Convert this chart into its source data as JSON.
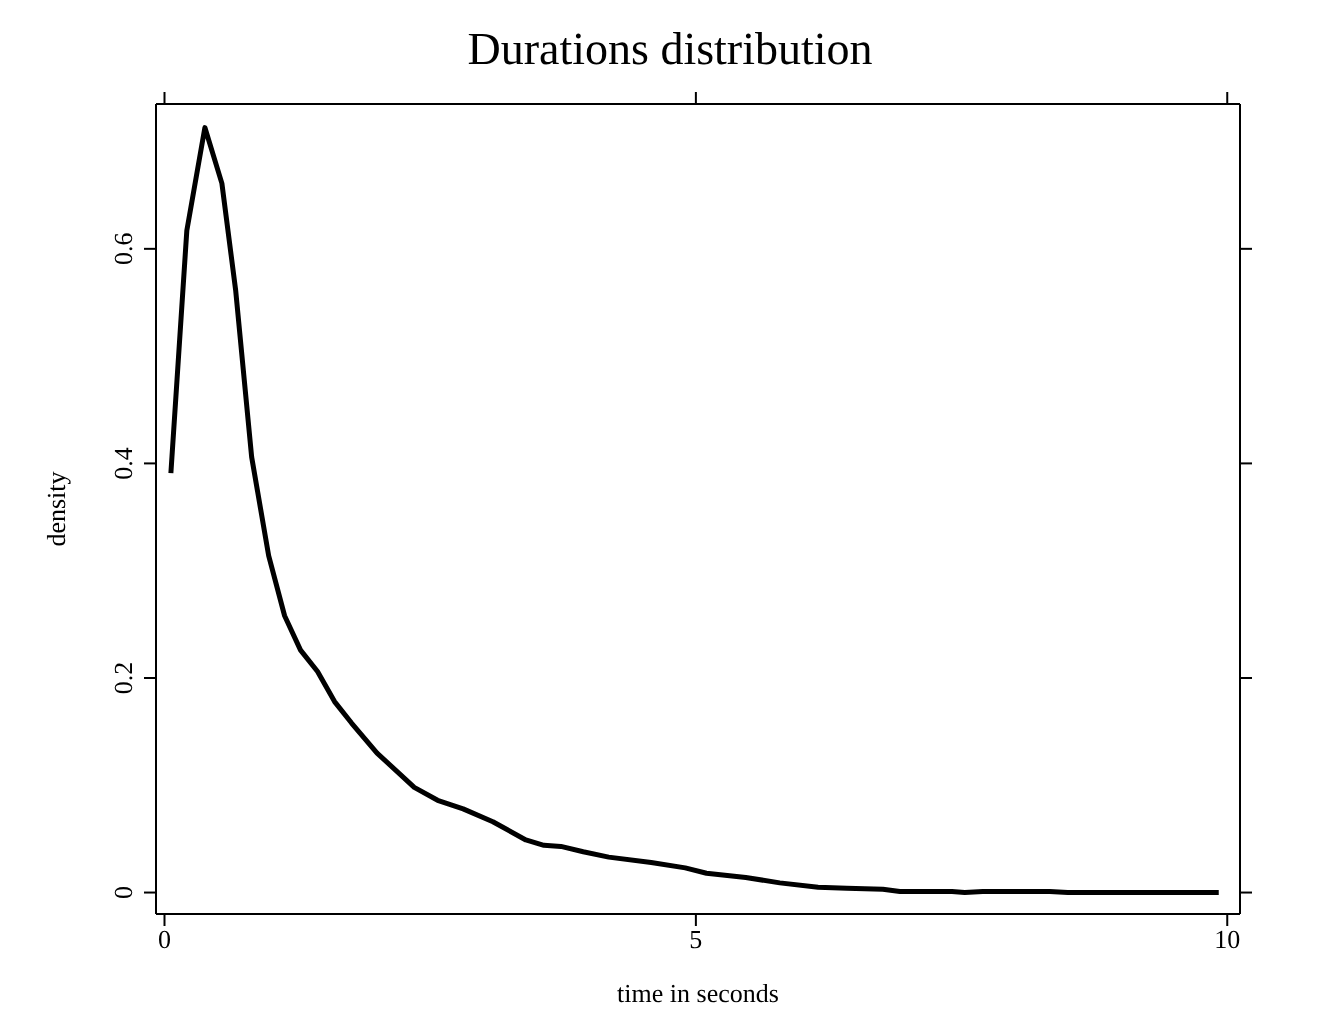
{
  "chart_data": {
    "type": "line",
    "title": "Durations distribution",
    "xlabel": "time in seconds",
    "ylabel": "density",
    "xlim": [
      -0.08,
      10.12
    ],
    "ylim": [
      -0.02,
      0.735
    ],
    "xticks": [
      0,
      5,
      10
    ],
    "yticks": [
      0,
      0.2,
      0.4,
      0.6
    ],
    "marker": "none",
    "line_style": "solid",
    "series": [
      {
        "color": "#000000",
        "x": [
          0.06,
          0.21,
          0.38,
          0.54,
          0.67,
          0.82,
          0.98,
          1.13,
          1.28,
          1.44,
          1.6,
          1.76,
          2.0,
          2.35,
          2.57,
          2.81,
          3.09,
          3.4,
          3.57,
          3.73,
          3.94,
          4.18,
          4.58,
          4.9,
          5.1,
          5.47,
          5.79,
          6.15,
          6.42,
          6.76,
          6.92,
          7.41,
          7.53,
          7.7,
          8.33,
          8.5,
          8.8,
          9.92
        ],
        "values": [
          0.391,
          0.617,
          0.713,
          0.661,
          0.561,
          0.406,
          0.314,
          0.258,
          0.226,
          0.206,
          0.178,
          0.158,
          0.13,
          0.098,
          0.086,
          0.078,
          0.066,
          0.049,
          0.044,
          0.043,
          0.038,
          0.033,
          0.028,
          0.023,
          0.018,
          0.014,
          0.009,
          0.005,
          0.004,
          0.003,
          0.001,
          0.001,
          0,
          0.001,
          0.001,
          0,
          0,
          0
        ]
      }
    ]
  }
}
